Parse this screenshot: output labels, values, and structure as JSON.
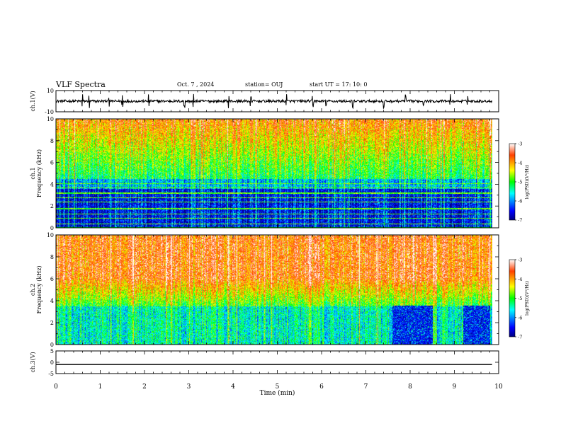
{
  "header": {
    "title": "VLF Spectra",
    "date": "Oct. 7 , 2024",
    "station": "station= OUJ",
    "start": "start UT = 17: 10: 0"
  },
  "chart_data": [
    {
      "panel": "ch1-waveform",
      "type": "line",
      "ylabel": "ch.1(V)",
      "ylim": [
        -10,
        10
      ],
      "yticks": [
        "10",
        "-10"
      ],
      "baseline": 0,
      "noise_amplitude": 1.2,
      "spike_times_min": [
        0.6,
        0.75,
        1.2,
        1.5,
        2.1,
        2.9,
        3.1,
        3.9,
        4.4,
        5.2,
        5.8,
        6.1,
        6.7,
        7.4,
        7.9,
        8.3,
        8.9,
        9.3
      ]
    },
    {
      "panel": "ch1-spectrogram",
      "type": "heatmap",
      "ylabel": "ch.1\nFrequency (kHz)",
      "ylim": [
        0,
        10
      ],
      "yticks": [
        "0",
        "2",
        "4",
        "6",
        "8",
        "10"
      ],
      "colorbar": {
        "label": "log(PSD)(V²/Hz)",
        "range": [
          -7,
          -3
        ],
        "ticks": [
          "-3",
          "-4",
          "-5",
          "-6",
          "-7"
        ]
      },
      "horizontal_lines_khz": [
        0.4,
        0.9,
        1.3,
        1.8,
        2.4,
        2.8,
        3.2,
        3.7,
        4.1
      ]
    },
    {
      "panel": "ch2-spectrogram",
      "type": "heatmap",
      "ylabel": "ch.2\nFrequency (kHz)",
      "ylim": [
        0,
        10
      ],
      "yticks": [
        "0",
        "2",
        "4",
        "6",
        "8",
        "10"
      ],
      "colorbar": {
        "label": "log(PSD)(V²/Hz)",
        "range": [
          -7,
          -3
        ],
        "ticks": [
          "-3",
          "-4",
          "-5",
          "-6",
          "-7"
        ]
      },
      "dark_blocks_min": [
        [
          7.6,
          8.5
        ],
        [
          9.2,
          9.8
        ]
      ]
    },
    {
      "panel": "ch3-waveform",
      "type": "line",
      "ylabel": "ch.3(V)",
      "ylim": [
        -5,
        5
      ],
      "yticks": [
        "5",
        "0",
        "-5"
      ],
      "constant_value": -1
    }
  ],
  "x_axis": {
    "label": "Time (min)",
    "range": [
      0,
      10
    ],
    "ticks": [
      "0",
      "1",
      "2",
      "3",
      "4",
      "5",
      "6",
      "7",
      "8",
      "9",
      "10"
    ],
    "data_end_min": 9.85
  }
}
